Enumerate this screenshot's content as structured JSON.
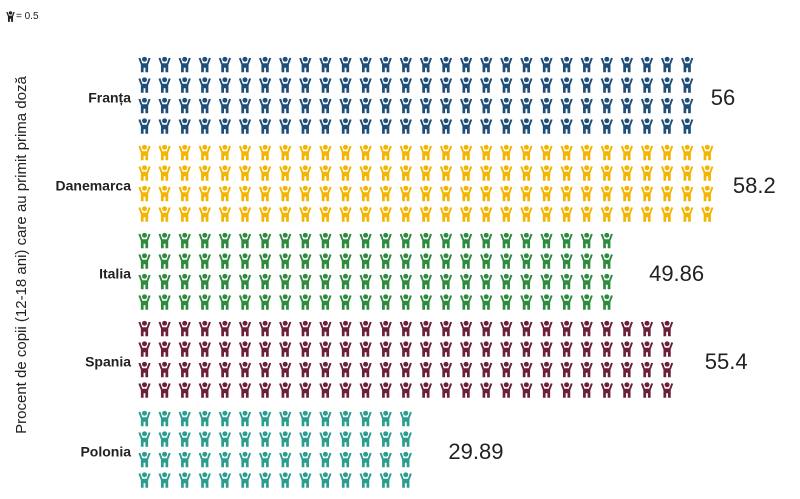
{
  "legend": {
    "icon": "person-icon",
    "text": "= 0.5"
  },
  "chart_data": {
    "type": "pictograph",
    "unit_per_icon": 0.5,
    "ylabel": "Procent de copii (12-18 ani) care au primit prima doză",
    "categories": [
      "Franța",
      "Danemarca",
      "Italia",
      "Spania",
      "Polonia"
    ],
    "values": [
      56,
      58.2,
      49.86,
      55.4,
      29.89
    ],
    "value_labels": [
      "56",
      "58.2",
      "49.86",
      "55.4",
      "29.89"
    ],
    "colors": [
      "#1f4e79",
      "#f4b400",
      "#2e8b3e",
      "#6b1f3a",
      "#2a9d8f"
    ]
  }
}
